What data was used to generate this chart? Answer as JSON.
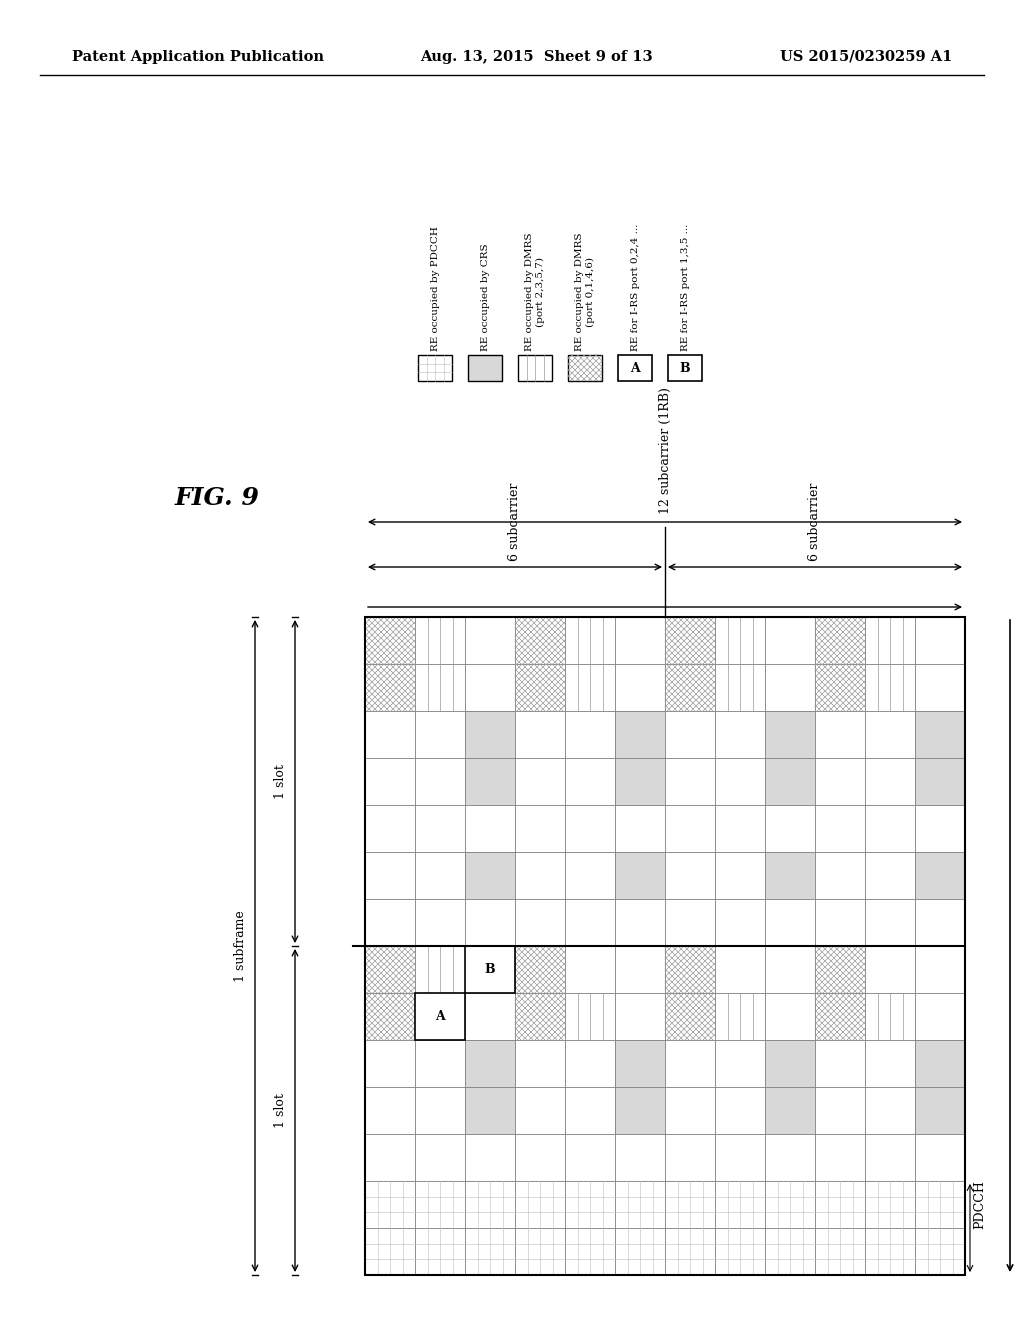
{
  "header_left": "Patent Application Publication",
  "header_mid": "Aug. 13, 2015  Sheet 9 of 13",
  "header_right": "US 2015/0230259 A1",
  "fig_label": "FIG. 9",
  "legend_labels": [
    "RE occupied by PDCCH",
    "RE occupied by CRS",
    "RE occupied by DMRS\n(port 2,3,5,7)",
    "RE occupied by DMRS\n(port 0,1,4,6)",
    "RE for I-RS port 0,2,4 ...",
    "RE for I-RS port 1,3,5 ..."
  ],
  "legend_patterns": [
    "pdcch",
    "crs",
    "dmrs_v",
    "dmrs_x",
    "irs_a",
    "irs_b"
  ],
  "n_freq": 12,
  "n_time": 14,
  "n_pdcch_cols": 2,
  "bg_color": "#ffffff"
}
